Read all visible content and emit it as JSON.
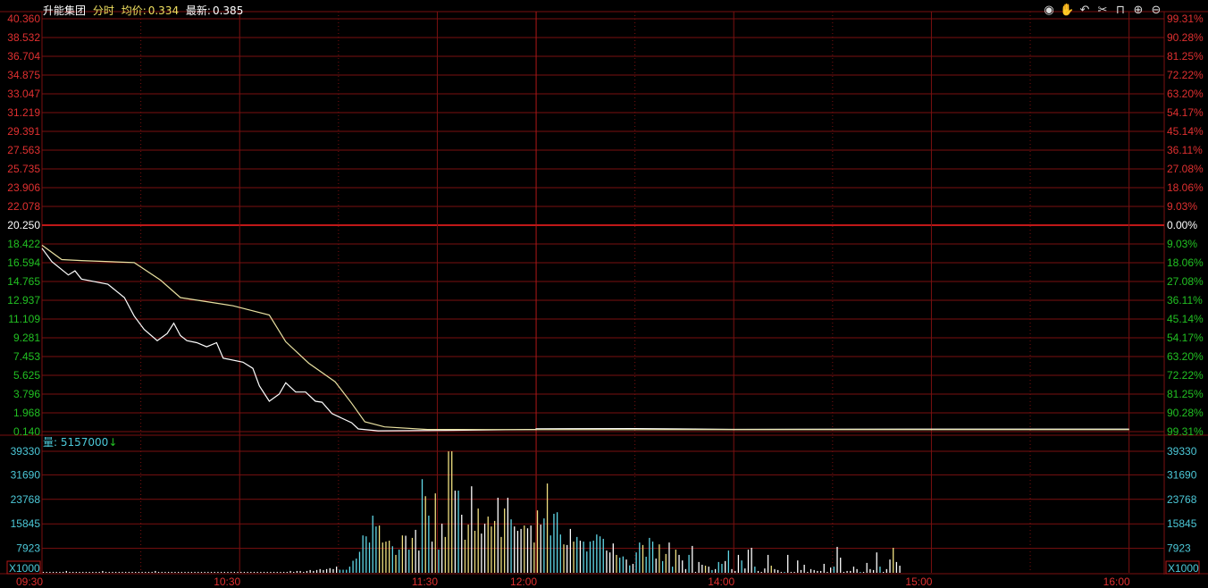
{
  "header": {
    "stock_name": "升能集团",
    "mode": "分时",
    "avg_label": "均价:",
    "avg_value": "0.334",
    "latest_label": "最新:",
    "latest_value": "0.385"
  },
  "toolbar_icons": [
    "eye-icon",
    "hand-icon",
    "undo-icon",
    "scissors-icon",
    "unlock-icon",
    "zoom-in-icon",
    "zoom-out-icon"
  ],
  "volume_header": {
    "label": "量:",
    "value": "5157000",
    "arrow": "↓"
  },
  "colors": {
    "up": "#e03030",
    "down": "#22c022",
    "neutral": "#ffffff",
    "grid": "#7a1010",
    "volume_axis": "#4cc8d8",
    "price_line": "#ffffff",
    "avg_line": "#e8e0a0"
  },
  "chart_data": {
    "type": "line",
    "price_axis": {
      "left_ticks": [
        "40.360",
        "38.532",
        "36.704",
        "34.875",
        "33.047",
        "31.219",
        "29.391",
        "27.563",
        "25.735",
        "23.906",
        "22.078",
        "20.250",
        "18.422",
        "16.594",
        "14.765",
        "12.937",
        "11.109",
        "9.281",
        "7.453",
        "5.625",
        "3.796",
        "1.968",
        "0.140"
      ],
      "right_ticks": [
        "99.31%",
        "90.28%",
        "81.25%",
        "72.22%",
        "63.20%",
        "54.17%",
        "45.14%",
        "36.11%",
        "27.08%",
        "18.06%",
        "9.03%",
        "0.00%",
        "9.03%",
        "18.06%",
        "27.08%",
        "36.11%",
        "45.14%",
        "54.17%",
        "63.20%",
        "72.22%",
        "81.25%",
        "90.28%",
        "99.31%"
      ],
      "ylim": [
        0.14,
        40.36
      ],
      "reference": 20.25
    },
    "x_ticks": [
      "09:30",
      "10:30",
      "11:30",
      "12:00",
      "14:00",
      "15:00",
      "16:00"
    ],
    "series": [
      {
        "key": "price",
        "points": [
          [
            "09:30",
            18.0
          ],
          [
            "09:33",
            16.7
          ],
          [
            "09:38",
            15.4
          ],
          [
            "09:40",
            15.8
          ],
          [
            "09:42",
            15.0
          ],
          [
            "09:50",
            14.5
          ],
          [
            "09:55",
            13.2
          ],
          [
            "09:58",
            11.4
          ],
          [
            "10:01",
            10.1
          ],
          [
            "10:05",
            9.0
          ],
          [
            "10:08",
            9.7
          ],
          [
            "10:10",
            10.7
          ],
          [
            "10:12",
            9.5
          ],
          [
            "10:14",
            9.0
          ],
          [
            "10:17",
            8.8
          ],
          [
            "10:20",
            8.4
          ],
          [
            "10:23",
            8.8
          ],
          [
            "10:25",
            7.3
          ],
          [
            "10:31",
            6.9
          ],
          [
            "10:34",
            6.3
          ],
          [
            "10:36",
            4.6
          ],
          [
            "10:39",
            3.1
          ],
          [
            "10:42",
            3.8
          ],
          [
            "10:44",
            4.9
          ],
          [
            "10:47",
            4.0
          ],
          [
            "10:50",
            4.0
          ],
          [
            "10:53",
            3.1
          ],
          [
            "10:55",
            3.0
          ],
          [
            "10:58",
            1.9
          ],
          [
            "11:04",
            1.0
          ],
          [
            "11:06",
            0.4
          ],
          [
            "11:12",
            0.22
          ],
          [
            "11:30",
            0.25
          ],
          [
            "12:00",
            0.36
          ],
          [
            "13:00",
            0.42
          ],
          [
            "13:30",
            0.44
          ],
          [
            "14:00",
            0.36
          ],
          [
            "15:00",
            0.38
          ],
          [
            "16:00",
            0.385
          ]
        ]
      },
      {
        "key": "average",
        "points": [
          [
            "09:30",
            18.3
          ],
          [
            "09:36",
            16.9
          ],
          [
            "09:42",
            16.8
          ],
          [
            "09:58",
            16.6
          ],
          [
            "10:06",
            14.9
          ],
          [
            "10:12",
            13.2
          ],
          [
            "10:28",
            12.4
          ],
          [
            "10:39",
            11.5
          ],
          [
            "10:44",
            8.9
          ],
          [
            "10:51",
            6.8
          ],
          [
            "10:59",
            5.0
          ],
          [
            "11:04",
            2.9
          ],
          [
            "11:08",
            1.1
          ],
          [
            "11:14",
            0.6
          ],
          [
            "11:27",
            0.35
          ],
          [
            "12:00",
            0.33
          ],
          [
            "16:00",
            0.334
          ]
        ]
      }
    ],
    "volume_axis": {
      "ticks": [
        "39330",
        "31690",
        "23768",
        "15845",
        "7923"
      ],
      "unit": "X1000",
      "ylim": [
        0,
        39330
      ]
    },
    "volume": [
      {
        "start": "09:30",
        "values": [
          300,
          300,
          300,
          300,
          300,
          300,
          300,
          600,
          300,
          300,
          300,
          300,
          300,
          300,
          300,
          300,
          300,
          300,
          600,
          300,
          300,
          300,
          300,
          300,
          300,
          300,
          300,
          300,
          300,
          300,
          300,
          300,
          300,
          300,
          600,
          300,
          300,
          300,
          300,
          300,
          300,
          300,
          300,
          300,
          300,
          300,
          300,
          300,
          300,
          300,
          300,
          300,
          300,
          300,
          300,
          300,
          300,
          300,
          300,
          300,
          300,
          300,
          300,
          300,
          300,
          300,
          300,
          300,
          300,
          300,
          300,
          300,
          300,
          300,
          300,
          600,
          300,
          600,
          600,
          300,
          600,
          900,
          600,
          900,
          1200,
          900,
          1200,
          1500,
          1200,
          2000,
          1000,
          1000,
          1000,
          2000,
          3900,
          4600,
          6800,
          12100,
          11800,
          9800,
          18500,
          15000,
          15300,
          9800,
          10100,
          10400,
          8600,
          5800,
          7500,
          12100,
          12000,
          7500,
          11300,
          13900,
          7200,
          30300,
          24800,
          18500,
          10100,
          25700,
          7500,
          15900,
          11600,
          39300,
          39330,
          26600,
          26600,
          18800,
          10700,
          15600,
          28000,
          13600,
          20800,
          12700,
          15900,
          18200,
          15000,
          16800,
          24300,
          11600,
          20800,
          24300,
          17300,
          15000,
          13600,
          14200,
          15300,
          14400,
          15300,
          9800
        ],
        "colors": "wwwwwwwwwwwwwwwwwwwwwwwwwwwwwwwwwwwwwwwwwwwwwwwwwwwwwwwwwwwwwwwwwwwwwwwwwwwwwwwwwwwwwwwwwwccccccccccccyyyycycywcywwcycwycwyyywcwyywyywwyyywyywcwwwywwyw"
      },
      {
        "start": "13:00",
        "values": [
          20200,
          15600,
          17600,
          28900,
          12100,
          19100,
          19600,
          12400,
          9200,
          9000,
          14200,
          10100,
          11600,
          10400,
          10100,
          6900,
          10100,
          10400,
          12400,
          11800,
          11000,
          7200,
          6600,
          9500,
          5800,
          4900,
          5300,
          4300,
          2400,
          2900,
          6600,
          9800,
          9000,
          5200,
          11300,
          10100,
          4600,
          9200,
          3800,
          6100,
          9800,
          2000,
          7500,
          5800,
          4000,
          1200,
          5800,
          8700,
          300,
          3500,
          2600,
          2300,
          2000,
          900,
          1200,
          3500,
          2900,
          3800,
          7200,
          1200,
          600,
          5800,
          4000,
          1400,
          7500,
          8100,
          2000,
          600,
          300,
          1400,
          5800,
          2300,
          1200,
          900,
          300,
          300,
          5800,
          300,
          300,
          4000,
          900,
          2600,
          300,
          1200,
          900,
          600,
          600,
          2900,
          300,
          1700,
          2000,
          8400,
          4900,
          300,
          600,
          600,
          2000,
          1200,
          200,
          300,
          3200,
          1200,
          900,
          6600,
          2000,
          300,
          1200,
          4300,
          8100,
          3500,
          2300
        ],
        "colors": "ywcyccccywwycwcccccccwwwyccwcwccycccwycywcywwwcwwwwywcwccwcwwwcwwwcwwwwywwwcwwwwwwwwwwwwwwcwwwwwwwcwwwwwcwwwyww"
      }
    ]
  }
}
